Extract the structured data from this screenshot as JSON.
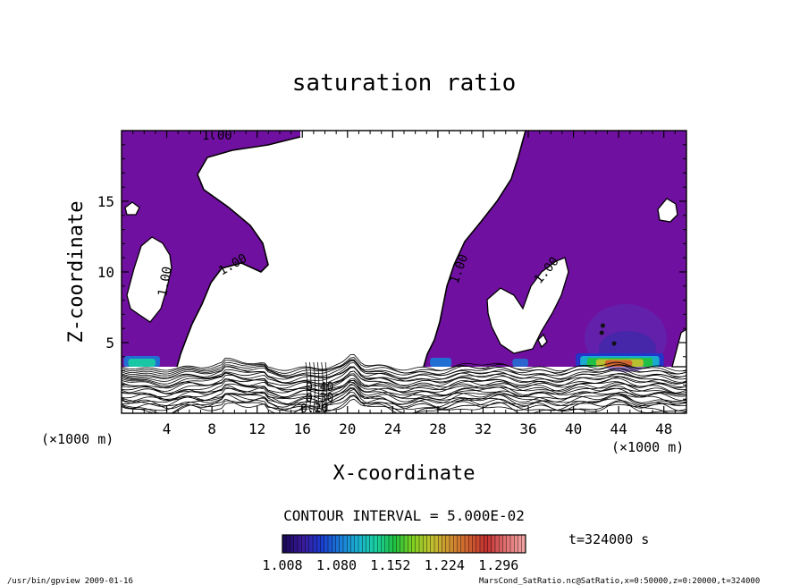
{
  "chart_data": {
    "type": "heatmap",
    "title": "saturation ratio",
    "xlabel": "X-coordinate",
    "ylabel": "Z-coordinate",
    "x_unit": "(×1000 m)",
    "z_unit": "(×1000 m)",
    "xlim": [
      0,
      50
    ],
    "ylim": [
      0,
      20
    ],
    "x_ticks": [
      4,
      8,
      12,
      16,
      20,
      24,
      28,
      32,
      36,
      40,
      44,
      48
    ],
    "y_ticks": [
      5,
      10,
      15
    ],
    "grid": false,
    "contour_interval_text": "CONTOUR INTERVAL = 5.000E-02",
    "contour_labels": [
      "1.00",
      "1.00",
      "1.00",
      "1.00",
      "1.00",
      "0.20",
      "0.30",
      "0.40"
    ],
    "colorbar": {
      "tick_labels": [
        "1.008",
        "1.080",
        "1.152",
        "1.224",
        "1.296"
      ],
      "min": 1.008,
      "max": 1.332,
      "colors": [
        "#1a0a5c",
        "#3a1a9a",
        "#1a3acc",
        "#1a7ad8",
        "#1ab0d0",
        "#1ad0a0",
        "#20c040",
        "#80d020",
        "#c0c030",
        "#d09030",
        "#d06030",
        "#c03030",
        "#e07070",
        "#f0a0a0"
      ]
    },
    "time_label": "t=324000 s",
    "footer_left": "/usr/bin/gpview  2009-01-16",
    "footer_right": "MarsCond_SatRatio.nc@SatRatio,x=0:50000,z=0:20000,t=324000",
    "fill_color": "#7010a0"
  }
}
